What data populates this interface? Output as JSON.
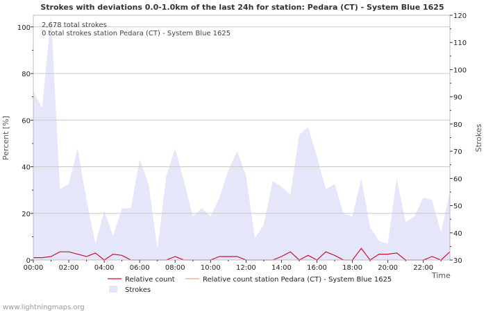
{
  "chart_data": {
    "type": "area",
    "title": "Strokes with deviations 0.0-1.0km of the last 24h for station: Pedara (CT) - System Blue 1625",
    "xlabel": "Time",
    "ylabel": "Percent   [%]",
    "y2label": "Strokes",
    "ylim": [
      0,
      105
    ],
    "y2lim": [
      30,
      120
    ],
    "xlim": [
      0,
      23.5
    ],
    "x_ticks": [
      0,
      2,
      4,
      6,
      8,
      10,
      12,
      14,
      16,
      18,
      20,
      22
    ],
    "x_tick_labels": [
      "00:00",
      "02:00",
      "04:00",
      "06:00",
      "08:00",
      "10:00",
      "12:00",
      "14:00",
      "16:00",
      "18:00",
      "20:00",
      "22:00"
    ],
    "y_ticks": [
      0,
      20,
      40,
      60,
      80,
      100
    ],
    "y_tick_labels": [
      "0",
      "20",
      "40",
      "60",
      "80",
      "100"
    ],
    "y2_ticks": [
      30,
      40,
      50,
      60,
      70,
      80,
      90,
      100,
      110,
      120
    ],
    "y2_tick_labels": [
      "30",
      "40",
      "50",
      "60",
      "70",
      "80",
      "90",
      "100",
      "110",
      "120"
    ],
    "annotations": [
      "2,678 total strokes",
      "0 total strokes station Pedara (CT) - System Blue 1625"
    ],
    "legend": [
      "Relative count",
      "Relative count station Pedara (CT) - System Blue 1625",
      "Strokes"
    ],
    "grid": true,
    "series": [
      {
        "name": "Strokes",
        "axis": "right",
        "color": "#e6e6fa",
        "x": [
          0,
          0.5,
          1,
          1.5,
          2,
          2.5,
          3,
          3.5,
          4,
          4.5,
          5,
          5.5,
          6,
          6.5,
          7,
          7.5,
          8,
          8.5,
          9,
          9.5,
          10,
          10.5,
          11,
          11.5,
          12,
          12.5,
          13,
          13.5,
          14,
          14.5,
          15,
          15.5,
          16,
          16.5,
          17,
          17.5,
          18,
          18.5,
          19,
          19.5,
          20,
          20.5,
          21,
          21.5,
          22,
          22.5,
          23,
          23.5
        ],
        "values": [
          92,
          86,
          120,
          56,
          58,
          71,
          52,
          36,
          48,
          39,
          49,
          49,
          67,
          58,
          34,
          61,
          71,
          59,
          46,
          49,
          46,
          53,
          63,
          70,
          61,
          38,
          43,
          59,
          57,
          54,
          76,
          79,
          68,
          56,
          58,
          47,
          46,
          60,
          42,
          37,
          36,
          60,
          44,
          46,
          53,
          52,
          40,
          55
        ]
      },
      {
        "name": "Relative count",
        "axis": "left",
        "color": "#cc1030",
        "x": [
          0,
          0.5,
          1,
          1.5,
          2,
          2.5,
          3,
          3.5,
          4,
          4.5,
          5,
          5.5,
          6,
          6.5,
          7,
          7.5,
          8,
          8.5,
          9,
          9.5,
          10,
          10.5,
          11,
          11.5,
          12,
          12.5,
          13,
          13.5,
          14,
          14.5,
          15,
          15.5,
          16,
          16.5,
          17,
          17.5,
          18,
          18.5,
          19,
          19.5,
          20,
          20.5,
          21,
          21.5,
          22,
          22.5,
          23,
          23.5
        ],
        "values": [
          1,
          1,
          1.5,
          3.5,
          3.5,
          2.5,
          1.5,
          3,
          0,
          2.5,
          2,
          0,
          0,
          0,
          0,
          0,
          1.5,
          0,
          0,
          0,
          0,
          1.5,
          1.5,
          1.5,
          0,
          0,
          0,
          0,
          1.5,
          3.5,
          0,
          2,
          0,
          3.5,
          2,
          0,
          0,
          5,
          0,
          2.5,
          2.5,
          3,
          0,
          0,
          0,
          1.5,
          0,
          3.5
        ]
      },
      {
        "name": "Relative count station Pedara (CT) - System Blue 1625",
        "axis": "left",
        "color": "#f0a080",
        "x": [],
        "values": []
      }
    ]
  },
  "footer": {
    "watermark": "www.lightningmaps.org"
  }
}
